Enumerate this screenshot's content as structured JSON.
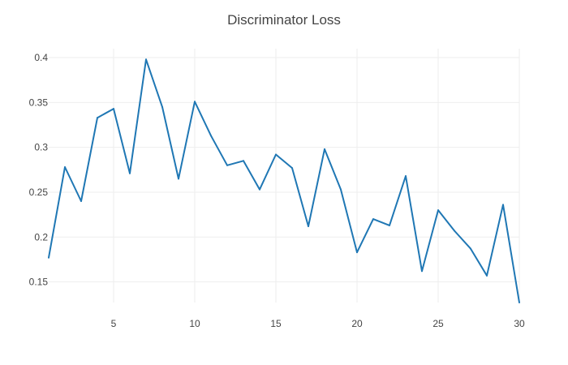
{
  "chart_data": {
    "type": "line",
    "title": "Discriminator Loss",
    "xlabel": "",
    "ylabel": "",
    "xlim": [
      1,
      30
    ],
    "ylim": [
      0.127,
      0.41
    ],
    "x_ticks": [
      5,
      10,
      15,
      20,
      25,
      30
    ],
    "y_ticks": [
      0.15,
      0.2,
      0.25,
      0.3,
      0.35,
      0.4
    ],
    "x_tick_labels": [
      "5",
      "10",
      "15",
      "20",
      "25",
      "30"
    ],
    "y_tick_labels": [
      "0.15",
      "0.2",
      "0.25",
      "0.3",
      "0.35",
      "0.4"
    ],
    "grid": true,
    "legend": "none",
    "series": [
      {
        "color": "#1f77b4",
        "x": [
          1,
          2,
          3,
          4,
          5,
          6,
          7,
          8,
          9,
          10,
          11,
          12,
          13,
          14,
          15,
          16,
          17,
          18,
          19,
          20,
          21,
          22,
          23,
          24,
          25,
          26,
          27,
          28,
          29,
          30
        ],
        "y": [
          0.177,
          0.278,
          0.24,
          0.333,
          0.343,
          0.271,
          0.398,
          0.345,
          0.265,
          0.351,
          0.313,
          0.28,
          0.285,
          0.253,
          0.292,
          0.277,
          0.212,
          0.298,
          0.253,
          0.183,
          0.22,
          0.213,
          0.268,
          0.162,
          0.23,
          0.207,
          0.187,
          0.157,
          0.236,
          0.127
        ]
      }
    ]
  }
}
